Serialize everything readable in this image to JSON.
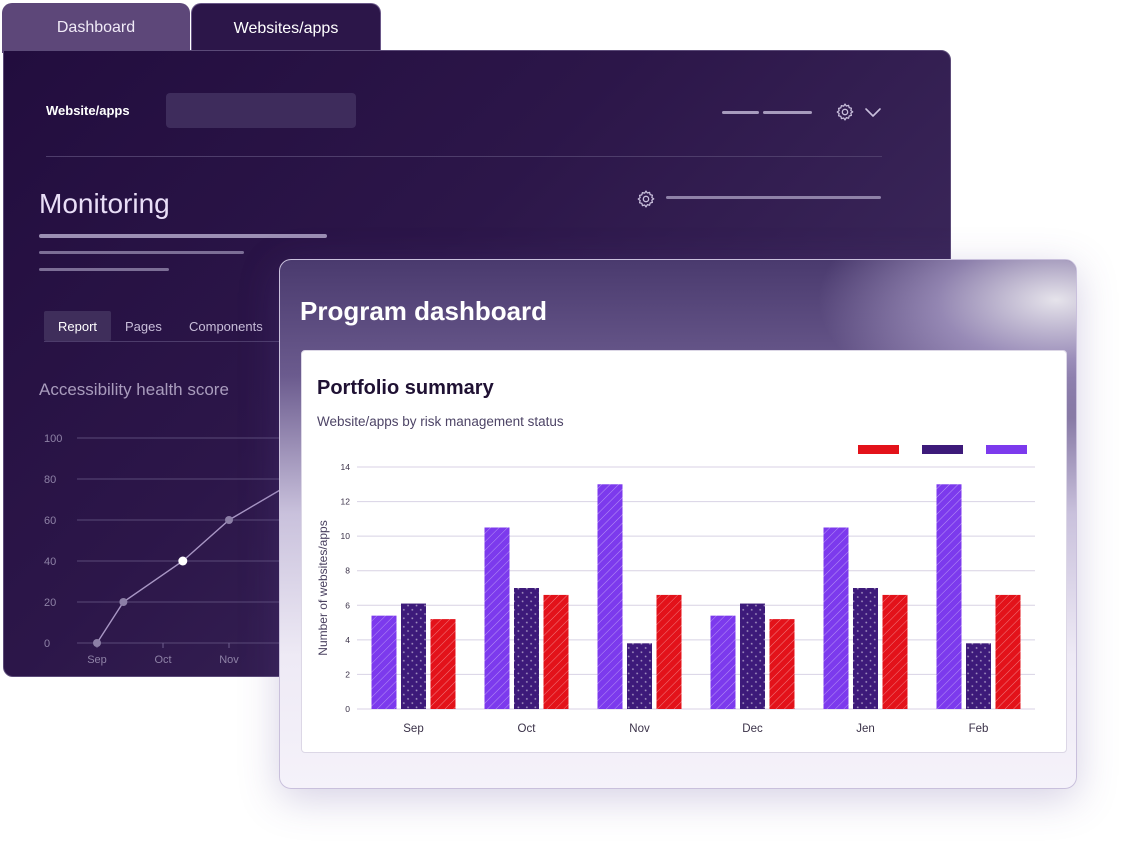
{
  "tabs": [
    {
      "label": "Dashboard"
    },
    {
      "label": "Websites/apps"
    }
  ],
  "back_window": {
    "header_label": "Website/apps",
    "monitoring_title": "Monitoring",
    "subtabs": [
      {
        "label": "Report"
      },
      {
        "label": "Pages"
      },
      {
        "label": "Components"
      }
    ],
    "health_title": "Accessibility health score",
    "chart_data": {
      "type": "line",
      "categories": [
        "Sep",
        "Oct",
        "Nov"
      ],
      "x": [
        0,
        0.4,
        1.3,
        2.0,
        2.9
      ],
      "values": [
        0,
        20,
        40,
        60,
        77
      ],
      "y_ticks": [
        "100",
        "80",
        "60",
        "40",
        "20",
        "0"
      ],
      "ylim": [
        0,
        100
      ],
      "line_color": "#a896c4"
    }
  },
  "front_window": {
    "title": "Program dashboard",
    "card_title": "Portfolio summary",
    "card_subtitle": "Website/apps by risk management status",
    "legend_colors": [
      "#e3121a",
      "#3d1a7a",
      "#7c3aed"
    ],
    "chart_data": {
      "type": "bar",
      "categories": [
        "Sep",
        "Oct",
        "Nov",
        "Dec",
        "Jen",
        "Feb"
      ],
      "series": [
        {
          "values": [
            5.4,
            10.5,
            13,
            5.4,
            10.5,
            13
          ],
          "color": "#7c3aed"
        },
        {
          "values": [
            6.1,
            7,
            3.8,
            6.1,
            7,
            3.8
          ],
          "color": "#3d1a7a"
        },
        {
          "values": [
            5.2,
            6.6,
            6.6,
            5.2,
            6.6,
            6.6
          ],
          "color": "#e3121a"
        }
      ],
      "ylabel": "Number of websites/apps",
      "ylim": [
        0,
        14
      ],
      "y_ticks": [
        "0",
        "2",
        "4",
        "6",
        "8",
        "10",
        "12",
        "14"
      ],
      "grid": true
    }
  }
}
